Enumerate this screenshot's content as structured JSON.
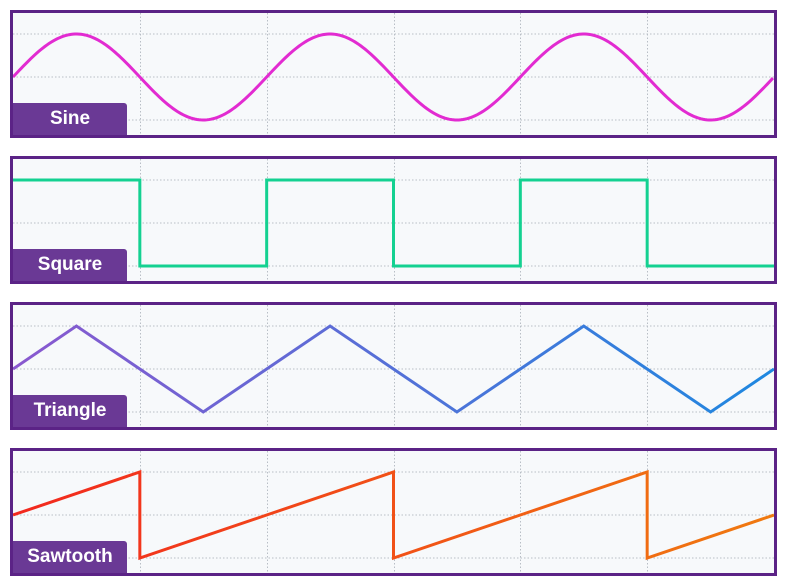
{
  "waves": [
    {
      "id": "sine",
      "label": "Sine",
      "colors": [
        "#e22bd1"
      ]
    },
    {
      "id": "square",
      "label": "Square",
      "colors": [
        "#14d191"
      ]
    },
    {
      "id": "triangle",
      "label": "Triangle",
      "colors": [
        "#8a58cf",
        "#1e88e0"
      ]
    },
    {
      "id": "sawtooth",
      "label": "Sawtooth",
      "colors": [
        "#f2281e",
        "#f07a10"
      ]
    }
  ],
  "grid_color": "#b8bec6",
  "cycles": 3
}
